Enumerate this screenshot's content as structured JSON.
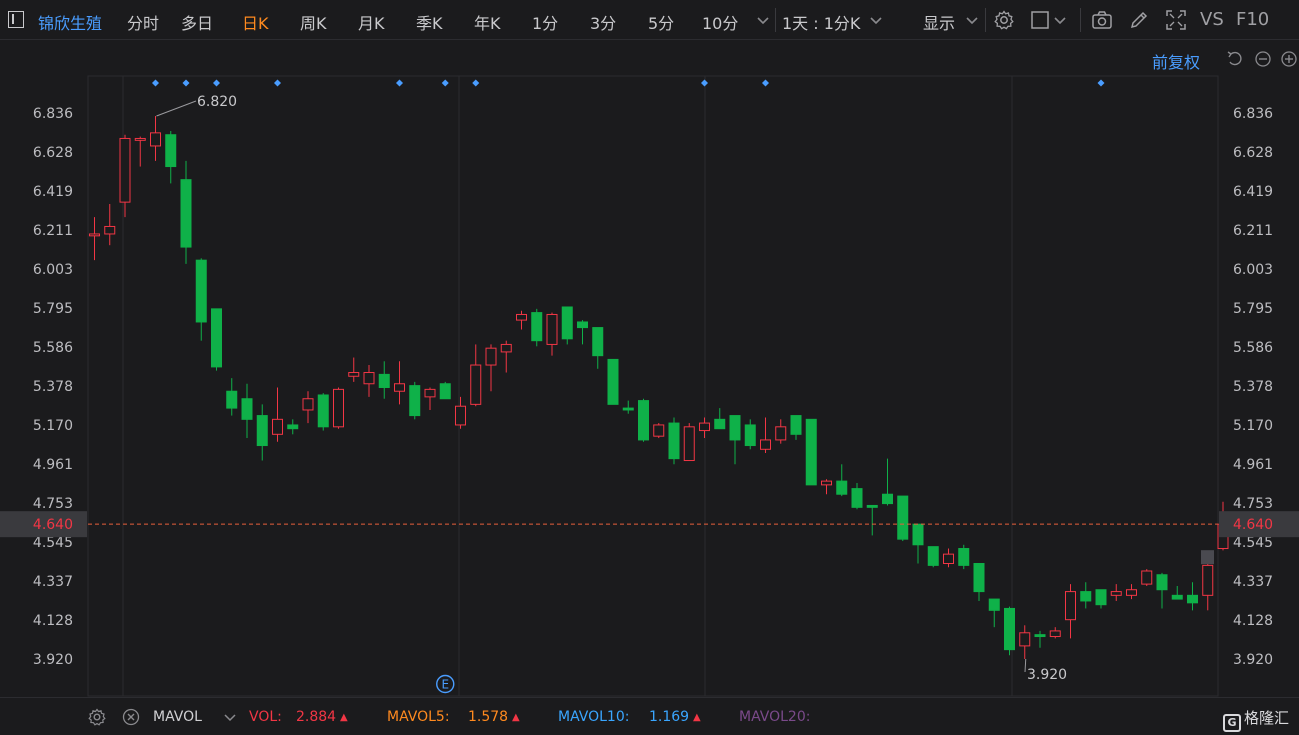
{
  "header": {
    "stock_name": "锦欣生殖",
    "tabs": [
      "分时",
      "多日",
      "日K",
      "周K",
      "月K",
      "季K",
      "年K",
      "1分",
      "3分",
      "5分",
      "10分"
    ],
    "active_tab": "日K",
    "period_selector": "1天 : 1分K",
    "display_label": "显示",
    "vs_label": "VS",
    "f10_label": "F10"
  },
  "adjust_label": "前复权",
  "colors": {
    "background": "#1b1b1d",
    "up": "#f23645",
    "down": "#0fb149",
    "grid": "#2b2b2f",
    "last_price": "#e8603c",
    "accent": "#4a9dff",
    "active_tab": "#ff8a1f"
  },
  "chart_data": {
    "type": "candlestick",
    "y_ticks": [
      "6.836",
      "6.628",
      "6.419",
      "6.211",
      "6.003",
      "5.795",
      "5.586",
      "5.378",
      "5.170",
      "4.961",
      "4.753",
      "4.545",
      "4.337",
      "4.128",
      "3.920"
    ],
    "ylim": [
      3.73,
      7.04
    ],
    "last_price": 4.64,
    "last_price_label": "4.640",
    "high_annotation": {
      "index": 4,
      "value": 6.82,
      "label": "6.820"
    },
    "low_annotation": {
      "index": 61,
      "value": 3.92,
      "label": "3.920"
    },
    "event_marker_indices": [
      4,
      6,
      8,
      12,
      20,
      23,
      25,
      40,
      44,
      66
    ],
    "e_marker_index": 23,
    "e_marker_label": "E",
    "candles": [
      {
        "o": 6.18,
        "h": 6.28,
        "l": 6.05,
        "c": 6.19
      },
      {
        "o": 6.19,
        "h": 6.35,
        "l": 6.13,
        "c": 6.23
      },
      {
        "o": 6.36,
        "h": 6.72,
        "l": 6.28,
        "c": 6.7
      },
      {
        "o": 6.69,
        "h": 6.71,
        "l": 6.55,
        "c": 6.7
      },
      {
        "o": 6.66,
        "h": 6.82,
        "l": 6.58,
        "c": 6.73
      },
      {
        "o": 6.72,
        "h": 6.74,
        "l": 6.46,
        "c": 6.55
      },
      {
        "o": 6.48,
        "h": 6.58,
        "l": 6.03,
        "c": 6.12
      },
      {
        "o": 6.05,
        "h": 6.06,
        "l": 5.62,
        "c": 5.72
      },
      {
        "o": 5.79,
        "h": 5.79,
        "l": 5.46,
        "c": 5.48
      },
      {
        "o": 5.35,
        "h": 5.42,
        "l": 5.22,
        "c": 5.26
      },
      {
        "o": 5.31,
        "h": 5.39,
        "l": 5.1,
        "c": 5.2
      },
      {
        "o": 5.22,
        "h": 5.28,
        "l": 4.98,
        "c": 5.06
      },
      {
        "o": 5.12,
        "h": 5.37,
        "l": 5.08,
        "c": 5.2
      },
      {
        "o": 5.17,
        "h": 5.2,
        "l": 5.12,
        "c": 5.15
      },
      {
        "o": 5.25,
        "h": 5.35,
        "l": 5.18,
        "c": 5.31
      },
      {
        "o": 5.33,
        "h": 5.34,
        "l": 5.14,
        "c": 5.16
      },
      {
        "o": 5.16,
        "h": 5.37,
        "l": 5.15,
        "c": 5.36
      },
      {
        "o": 5.43,
        "h": 5.53,
        "l": 5.4,
        "c": 5.45
      },
      {
        "o": 5.39,
        "h": 5.49,
        "l": 5.32,
        "c": 5.45
      },
      {
        "o": 5.44,
        "h": 5.51,
        "l": 5.31,
        "c": 5.37
      },
      {
        "o": 5.35,
        "h": 5.51,
        "l": 5.28,
        "c": 5.39
      },
      {
        "o": 5.38,
        "h": 5.4,
        "l": 5.2,
        "c": 5.22
      },
      {
        "o": 5.32,
        "h": 5.37,
        "l": 5.25,
        "c": 5.36
      },
      {
        "o": 5.39,
        "h": 5.4,
        "l": 5.31,
        "c": 5.31
      },
      {
        "o": 5.17,
        "h": 5.32,
        "l": 5.15,
        "c": 5.27
      },
      {
        "o": 5.28,
        "h": 5.6,
        "l": 5.27,
        "c": 5.49
      },
      {
        "o": 5.49,
        "h": 5.6,
        "l": 5.35,
        "c": 5.58
      },
      {
        "o": 5.56,
        "h": 5.62,
        "l": 5.45,
        "c": 5.6
      },
      {
        "o": 5.73,
        "h": 5.78,
        "l": 5.68,
        "c": 5.76
      },
      {
        "o": 5.77,
        "h": 5.79,
        "l": 5.59,
        "c": 5.62
      },
      {
        "o": 5.6,
        "h": 5.77,
        "l": 5.54,
        "c": 5.76
      },
      {
        "o": 5.8,
        "h": 5.8,
        "l": 5.6,
        "c": 5.63
      },
      {
        "o": 5.72,
        "h": 5.73,
        "l": 5.6,
        "c": 5.69
      },
      {
        "o": 5.69,
        "h": 5.69,
        "l": 5.47,
        "c": 5.54
      },
      {
        "o": 5.52,
        "h": 5.52,
        "l": 5.28,
        "c": 5.28
      },
      {
        "o": 5.26,
        "h": 5.3,
        "l": 5.23,
        "c": 5.25
      },
      {
        "o": 5.3,
        "h": 5.31,
        "l": 5.08,
        "c": 5.09
      },
      {
        "o": 5.11,
        "h": 5.18,
        "l": 5.1,
        "c": 5.17
      },
      {
        "o": 5.18,
        "h": 5.21,
        "l": 4.96,
        "c": 4.99
      },
      {
        "o": 4.98,
        "h": 5.18,
        "l": 4.98,
        "c": 5.16
      },
      {
        "o": 5.14,
        "h": 5.21,
        "l": 5.1,
        "c": 5.18
      },
      {
        "o": 5.2,
        "h": 5.26,
        "l": 5.15,
        "c": 5.15
      },
      {
        "o": 5.22,
        "h": 5.22,
        "l": 4.96,
        "c": 5.09
      },
      {
        "o": 5.17,
        "h": 5.2,
        "l": 5.04,
        "c": 5.06
      },
      {
        "o": 5.04,
        "h": 5.21,
        "l": 5.02,
        "c": 5.09
      },
      {
        "o": 5.09,
        "h": 5.2,
        "l": 5.07,
        "c": 5.16
      },
      {
        "o": 5.22,
        "h": 5.22,
        "l": 5.09,
        "c": 5.12
      },
      {
        "o": 5.2,
        "h": 5.2,
        "l": 4.85,
        "c": 4.85
      },
      {
        "o": 4.85,
        "h": 4.88,
        "l": 4.8,
        "c": 4.87
      },
      {
        "o": 4.87,
        "h": 4.96,
        "l": 4.79,
        "c": 4.8
      },
      {
        "o": 4.83,
        "h": 4.86,
        "l": 4.72,
        "c": 4.73
      },
      {
        "o": 4.74,
        "h": 4.74,
        "l": 4.58,
        "c": 4.73
      },
      {
        "o": 4.8,
        "h": 4.99,
        "l": 4.74,
        "c": 4.75
      },
      {
        "o": 4.79,
        "h": 4.79,
        "l": 4.55,
        "c": 4.56
      },
      {
        "o": 4.64,
        "h": 4.64,
        "l": 4.43,
        "c": 4.53
      },
      {
        "o": 4.52,
        "h": 4.52,
        "l": 4.41,
        "c": 4.42
      },
      {
        "o": 4.43,
        "h": 4.51,
        "l": 4.41,
        "c": 4.48
      },
      {
        "o": 4.51,
        "h": 4.53,
        "l": 4.4,
        "c": 4.42
      },
      {
        "o": 4.43,
        "h": 4.43,
        "l": 4.23,
        "c": 4.28
      },
      {
        "o": 4.24,
        "h": 4.24,
        "l": 4.09,
        "c": 4.18
      },
      {
        "o": 4.19,
        "h": 4.2,
        "l": 3.94,
        "c": 3.97
      },
      {
        "o": 3.99,
        "h": 4.1,
        "l": 3.92,
        "c": 4.06
      },
      {
        "o": 4.05,
        "h": 4.07,
        "l": 3.98,
        "c": 4.04
      },
      {
        "o": 4.04,
        "h": 4.09,
        "l": 4.03,
        "c": 4.07
      },
      {
        "o": 4.13,
        "h": 4.32,
        "l": 4.03,
        "c": 4.28
      },
      {
        "o": 4.28,
        "h": 4.33,
        "l": 4.19,
        "c": 4.23
      },
      {
        "o": 4.29,
        "h": 4.29,
        "l": 4.19,
        "c": 4.21
      },
      {
        "o": 4.26,
        "h": 4.32,
        "l": 4.23,
        "c": 4.28
      },
      {
        "o": 4.26,
        "h": 4.32,
        "l": 4.24,
        "c": 4.29
      },
      {
        "o": 4.32,
        "h": 4.4,
        "l": 4.31,
        "c": 4.39
      },
      {
        "o": 4.37,
        "h": 4.38,
        "l": 4.19,
        "c": 4.29
      },
      {
        "o": 4.26,
        "h": 4.31,
        "l": 4.24,
        "c": 4.24
      },
      {
        "o": 4.26,
        "h": 4.33,
        "l": 4.18,
        "c": 4.22
      },
      {
        "o": 4.26,
        "h": 4.43,
        "l": 4.18,
        "c": 4.42
      },
      {
        "o": 4.51,
        "h": 4.76,
        "l": 4.5,
        "c": 4.64
      }
    ]
  },
  "volume_bar": {
    "indicator_name": "MAVOL",
    "vol_label": "VOL:",
    "vol_value": "2.884",
    "mavol5_label": "MAVOL5:",
    "mavol5_value": "1.578",
    "mavol10_label": "MAVOL10:",
    "mavol10_value": "1.169",
    "mavol20_label": "MAVOL20:",
    "up_arrow": "▲"
  },
  "logo_text": "格隆汇",
  "logo_mark": "G"
}
